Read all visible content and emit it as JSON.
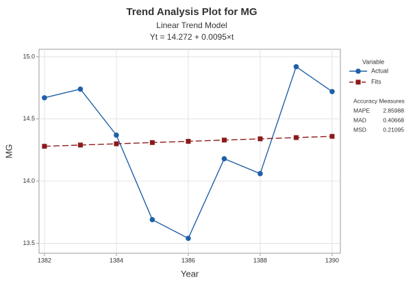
{
  "chart_data": {
    "type": "line",
    "title": "Trend Analysis Plot for MG",
    "subtitle": [
      "Linear Trend Model",
      "Yt = 14.272 + 0.0095×t"
    ],
    "x_label": "Year",
    "y_label": "MG",
    "x": [
      1382,
      1383,
      1384,
      1385,
      1386,
      1387,
      1388,
      1389,
      1390
    ],
    "series": [
      {
        "name": "Actual",
        "color": "#1f5fa8",
        "marker": "circle",
        "dashed": false,
        "values": [
          14.67,
          14.74,
          14.37,
          13.69,
          13.54,
          14.18,
          14.06,
          14.92,
          14.72
        ]
      },
      {
        "name": "Fits",
        "color": "#8b1a1a",
        "marker": "square",
        "dashed": true,
        "values": [
          14.28,
          14.29,
          14.3,
          14.31,
          14.32,
          14.33,
          14.34,
          14.35,
          14.36
        ]
      }
    ],
    "xlim": [
      1381.85,
      1390.23
    ],
    "ylim": [
      13.42,
      15.06
    ],
    "xticks": [
      1382,
      1384,
      1386,
      1388,
      1390
    ],
    "yticks": [
      13.5,
      {
        "value": 14,
        "label": "14.0"
      },
      14.5,
      {
        "value": 15,
        "label": "15.0"
      }
    ],
    "grid": true,
    "legend_title": "Variable",
    "accuracy_measures": {
      "title": "Accuracy Measures",
      "rows": [
        [
          "MAPE",
          2.85988
        ],
        [
          "MAD",
          0.40668
        ],
        [
          "MSD",
          0.21095
        ]
      ]
    }
  }
}
